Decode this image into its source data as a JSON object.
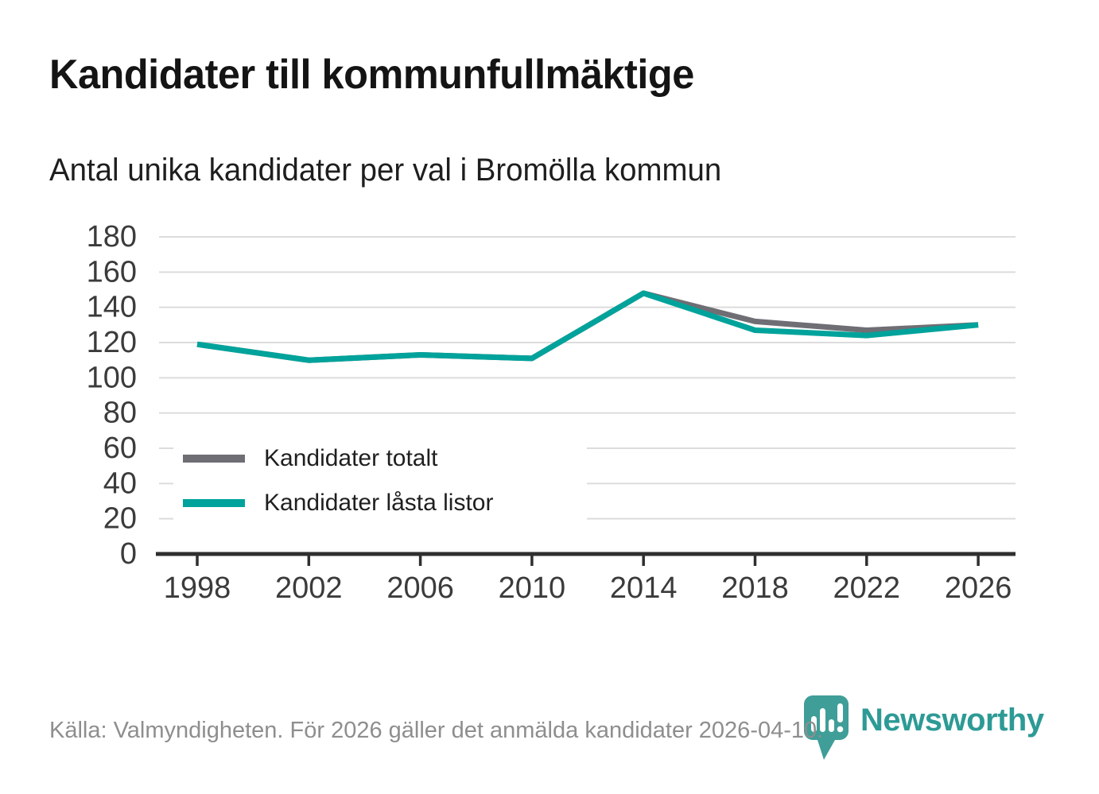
{
  "header": {
    "title": "Kandidater till kommunfullmäktige",
    "subtitle": "Antal unika kandidater per val i Bromölla kommun"
  },
  "chart_data": {
    "type": "line",
    "title": "Kandidater till kommunfullmäktige",
    "subtitle": "Antal unika kandidater per val i Bromölla kommun",
    "categories": [
      "1998",
      "2002",
      "2006",
      "2010",
      "2014",
      "2018",
      "2022",
      "2026"
    ],
    "series": [
      {
        "name": "Kandidater totalt",
        "color": "#6f6e74",
        "values": [
          119,
          110,
          113,
          111,
          148,
          132,
          127,
          130
        ]
      },
      {
        "name": "Kandidater låsta listor",
        "color": "#00a39b",
        "values": [
          119,
          110,
          113,
          111,
          148,
          127,
          124,
          130
        ]
      }
    ],
    "ylim": [
      0,
      180
    ],
    "ytick_step": 20,
    "grid": "horizontal",
    "legend_position": "inside-bottom-left"
  },
  "legend": {
    "items": [
      {
        "label": "Kandidater totalt"
      },
      {
        "label": "Kandidater låsta listor"
      }
    ]
  },
  "footer": {
    "source": "Källa: Valmyndigheten. För 2026 gäller det anmälda kandidater 2026-04-10.",
    "brand": "Newsworthy"
  },
  "colors": {
    "series_total": "#6f6e74",
    "series_locked": "#00a39b",
    "gridline": "#dcdcdc",
    "axis": "#2f2f2f",
    "tick_label": "#3b3b3b",
    "title_text": "#141414",
    "source_text": "#8e8e8e",
    "brand_teal": "#2d9a95"
  }
}
